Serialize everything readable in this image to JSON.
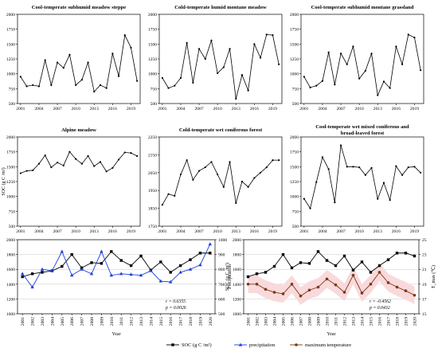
{
  "figure": {
    "legend": {
      "soc_label": "SOC (g C /m²)",
      "precip_label": "precipitation",
      "maxtemp_label": "maximum temperature"
    },
    "colors": {
      "black": "#000000",
      "blue": "#1f3fd8",
      "brown": "#7a3a12",
      "band": "#f9d9dc",
      "grid": "#c8c8c8"
    }
  },
  "chart_data": [
    {
      "type": "line",
      "title": "Cool-temperate subhumid meadow steppe",
      "x": [
        2001,
        2002,
        2003,
        2004,
        2005,
        2006,
        2007,
        2008,
        2009,
        2010,
        2011,
        2012,
        2013,
        2014,
        2015,
        2016,
        2017,
        2018,
        2019,
        2020
      ],
      "series": [
        {
          "values": [
            950,
            790,
            810,
            790,
            1230,
            810,
            1190,
            1100,
            1320,
            810,
            900,
            1190,
            700,
            810,
            760,
            1340,
            960,
            1650,
            1440,
            880
          ]
        }
      ],
      "xticks": [
        2001,
        2004,
        2007,
        2010,
        2013,
        2016,
        2019
      ],
      "ylim": [
        500,
        2000
      ],
      "yticks": [
        500,
        750,
        1000,
        1250,
        1500,
        1750,
        2000
      ],
      "ylabel": ""
    },
    {
      "type": "line",
      "title": "Cold-temperate humid montane meadow",
      "x": [
        2001,
        2002,
        2003,
        2004,
        2005,
        2006,
        2007,
        2008,
        2009,
        2010,
        2011,
        2012,
        2013,
        2014,
        2015,
        2016,
        2017,
        2018,
        2019,
        2020
      ],
      "series": [
        {
          "values": [
            930,
            760,
            800,
            930,
            1520,
            850,
            1420,
            1250,
            1560,
            1010,
            1110,
            1420,
            580,
            980,
            720,
            1500,
            1270,
            1660,
            1650,
            1160
          ]
        }
      ],
      "xticks": [
        2001,
        2004,
        2007,
        2010,
        2013,
        2016,
        2019
      ],
      "ylim": [
        500,
        2000
      ],
      "yticks": [
        500,
        750,
        1000,
        1250,
        1500,
        1750,
        2000
      ],
      "ylabel": ""
    },
    {
      "type": "line",
      "title": "Cool-temperate subhumid montane grassland",
      "x": [
        2001,
        2002,
        2003,
        2004,
        2005,
        2006,
        2007,
        2008,
        2009,
        2010,
        2011,
        2012,
        2013,
        2014,
        2015,
        2016,
        2017,
        2018,
        2019,
        2020
      ],
      "series": [
        {
          "values": [
            950,
            770,
            800,
            880,
            1360,
            820,
            1340,
            1160,
            1460,
            920,
            1050,
            1340,
            640,
            870,
            760,
            1460,
            1160,
            1660,
            1610,
            1060
          ]
        }
      ],
      "xticks": [
        2001,
        2004,
        2007,
        2010,
        2013,
        2016,
        2019
      ],
      "ylim": [
        500,
        2000
      ],
      "yticks": [
        500,
        750,
        1000,
        1250,
        1500,
        1750,
        2000
      ],
      "ylabel": ""
    },
    {
      "type": "line",
      "title": "Alpine meadow",
      "x": [
        2001,
        2002,
        2003,
        2004,
        2005,
        2006,
        2007,
        2008,
        2009,
        2010,
        2011,
        2012,
        2013,
        2014,
        2015,
        2016,
        2017,
        2018,
        2019,
        2020
      ],
      "series": [
        {
          "values": [
            1390,
            1430,
            1440,
            1550,
            1690,
            1490,
            1570,
            1520,
            1750,
            1630,
            1550,
            1680,
            1510,
            1580,
            1420,
            1480,
            1620,
            1740,
            1730,
            1680
          ]
        }
      ],
      "xticks": [
        2001,
        2004,
        2007,
        2010,
        2013,
        2016,
        2019
      ],
      "ylim": [
        500,
        2000
      ],
      "yticks": [
        500,
        750,
        1000,
        1250,
        1500,
        1750,
        2000
      ],
      "ylabel": "SOC (g C /m²)"
    },
    {
      "type": "line",
      "title": "Cold-temperate wet coniferous forest",
      "x": [
        2001,
        2002,
        2003,
        2004,
        2005,
        2006,
        2007,
        2008,
        2009,
        2010,
        2011,
        2012,
        2013,
        2014,
        2015,
        2016,
        2017,
        2018,
        2019,
        2020
      ],
      "series": [
        {
          "values": [
            1870,
            1930,
            1920,
            2040,
            2120,
            2010,
            2060,
            2080,
            2110,
            2040,
            1970,
            2110,
            1880,
            2000,
            1970,
            2020,
            2050,
            2080,
            2120,
            2120
          ]
        }
      ],
      "xticks": [
        2001,
        2004,
        2007,
        2010,
        2013,
        2016,
        2019
      ],
      "ylim": [
        1750,
        2250
      ],
      "yticks": [
        1750,
        1850,
        1950,
        2050,
        2150,
        2250
      ],
      "ylabel": ""
    },
    {
      "type": "line",
      "title": "Cool-temperate wet mixed coniferous and broad-leaved forest",
      "x": [
        2001,
        2002,
        2003,
        2004,
        2005,
        2006,
        2007,
        2008,
        2009,
        2010,
        2011,
        2012,
        2013,
        2014,
        2015,
        2016,
        2017,
        2018,
        2019,
        2020
      ],
      "series": [
        {
          "values": [
            960,
            800,
            1240,
            1660,
            1460,
            900,
            1860,
            1500,
            1500,
            1490,
            1360,
            1480,
            960,
            1230,
            940,
            1510,
            1360,
            1490,
            1500,
            1400
          ]
        }
      ],
      "xticks": [
        2001,
        2004,
        2007,
        2010,
        2013,
        2016,
        2019
      ],
      "ylim": [
        500,
        2000
      ],
      "yticks": [
        500,
        750,
        1000,
        1250,
        1500,
        1750,
        2000
      ],
      "ylabel": ""
    },
    {
      "type": "line",
      "title": "",
      "x": [
        2001,
        2002,
        2003,
        2004,
        2005,
        2006,
        2007,
        2008,
        2009,
        2010,
        2011,
        2012,
        2013,
        2014,
        2015,
        2016,
        2017,
        2018,
        2019,
        2020
      ],
      "xticks": [
        2001,
        2002,
        2003,
        2004,
        2005,
        2006,
        2007,
        2008,
        2009,
        2010,
        2011,
        2012,
        2013,
        2014,
        2015,
        2016,
        2017,
        2018,
        2019,
        2020
      ],
      "xlabel": "Year",
      "ylabel": "",
      "ylim": [
        1000,
        2000
      ],
      "yticks": [
        1000,
        1200,
        1400,
        1600,
        1800,
        2000
      ],
      "y2lim": [
        500,
        1000
      ],
      "y2ticks": [
        500,
        600,
        700,
        800,
        900,
        1000
      ],
      "y2label": "Precipitation",
      "stats": {
        "r": "r = 0.6355",
        "p": "p = 0.0026"
      },
      "series": [
        {
          "axis": "left",
          "color": "#000000",
          "marker": "square",
          "values": [
            1500,
            1540,
            1560,
            1580,
            1640,
            1800,
            1620,
            1690,
            1680,
            1840,
            1720,
            1650,
            1780,
            1590,
            1700,
            1560,
            1650,
            1730,
            1820,
            1820
          ]
        },
        {
          "axis": "right",
          "color": "#1f3fd8",
          "marker": "triangle",
          "values": [
            770,
            680,
            800,
            790,
            920,
            760,
            800,
            770,
            920,
            760,
            770,
            765,
            760,
            790,
            720,
            715,
            780,
            800,
            830,
            970
          ]
        }
      ]
    },
    {
      "type": "line",
      "title": "",
      "x": [
        2001,
        2002,
        2003,
        2004,
        2005,
        2006,
        2007,
        2008,
        2009,
        2010,
        2011,
        2012,
        2013,
        2014,
        2015,
        2016,
        2017,
        2018,
        2019,
        2020
      ],
      "xticks": [
        2001,
        2002,
        2003,
        2004,
        2005,
        2006,
        2007,
        2008,
        2009,
        2010,
        2011,
        2012,
        2013,
        2014,
        2015,
        2016,
        2017,
        2018,
        2019,
        2020
      ],
      "xlabel": "Year",
      "ylabel": "SOC (g C /m²)",
      "ylim": [
        1000,
        2000
      ],
      "yticks": [
        1000,
        1200,
        1400,
        1600,
        1800,
        2000
      ],
      "y2lim": [
        15,
        25
      ],
      "y2ticks": [
        15,
        17,
        19,
        21,
        23,
        25
      ],
      "y2label": "T_max (℃)",
      "stats": {
        "r": "r = -0.4562",
        "p": "p = 0.0432"
      },
      "series": [
        {
          "axis": "left",
          "color": "#000000",
          "marker": "square",
          "values": [
            1500,
            1540,
            1560,
            1640,
            1800,
            1620,
            1690,
            1680,
            1840,
            1720,
            1650,
            1780,
            1590,
            1700,
            1560,
            1650,
            1730,
            1820,
            1820,
            1780
          ]
        },
        {
          "axis": "right",
          "color": "#7a3a12",
          "marker": "circle",
          "band": true,
          "values": [
            19.0,
            19.0,
            18.3,
            17.9,
            17.7,
            19.0,
            17.4,
            18.2,
            18.6,
            19.7,
            18.9,
            17.9,
            20.2,
            17.8,
            19.0,
            20.6,
            19.2,
            18.6,
            18.1,
            17.5
          ]
        }
      ]
    }
  ]
}
